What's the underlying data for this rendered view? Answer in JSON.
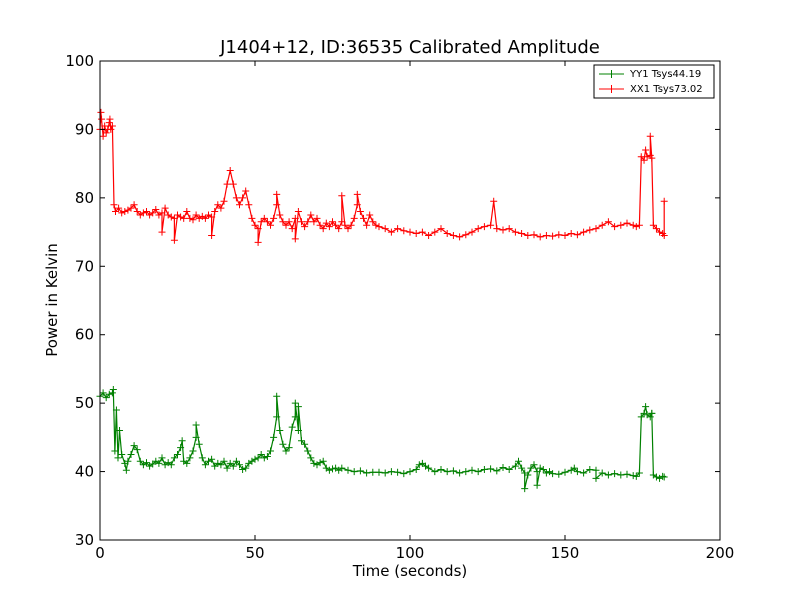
{
  "chart_data": {
    "type": "line",
    "title": "J1404+12, ID:36535 Calibrated Amplitude",
    "xlabel": "Time (seconds)",
    "ylabel": "Power in Kelvin",
    "xlim": [
      0,
      200
    ],
    "ylim": [
      30,
      100
    ],
    "xticks": [
      "0",
      "50",
      "100",
      "150",
      "200"
    ],
    "yticks": [
      "30",
      "40",
      "50",
      "60",
      "70",
      "80",
      "90",
      "100"
    ],
    "grid": false,
    "legend_position": "top-right",
    "marker": "+",
    "series": [
      {
        "name": "YY1 Tsys44.19",
        "color": "#008000",
        "points": [
          [
            0,
            51
          ],
          [
            1,
            51.5
          ],
          [
            2,
            50.8
          ],
          [
            3,
            51.3
          ],
          [
            4,
            51.5
          ],
          [
            4.8,
            43
          ],
          [
            5.3,
            49
          ],
          [
            5.8,
            42
          ],
          [
            6.3,
            46
          ],
          [
            7,
            42.5
          ],
          [
            8,
            41.2
          ],
          [
            9,
            41.5
          ],
          [
            10,
            42.5
          ],
          [
            11,
            43.8
          ],
          [
            12,
            43.2
          ],
          [
            13,
            41.5
          ],
          [
            14,
            41
          ],
          [
            15,
            41.3
          ],
          [
            16,
            40.8
          ],
          [
            17,
            41.1
          ],
          [
            18,
            41.5
          ],
          [
            19,
            41.2
          ],
          [
            20,
            42
          ],
          [
            21,
            41
          ],
          [
            22,
            41.3
          ],
          [
            23,
            41
          ],
          [
            24,
            42
          ],
          [
            25,
            42.5
          ],
          [
            26,
            43.5
          ],
          [
            27,
            41.5
          ],
          [
            28,
            41.2
          ],
          [
            29,
            42
          ],
          [
            30,
            43
          ],
          [
            31,
            45
          ],
          [
            32,
            44
          ],
          [
            33,
            42
          ],
          [
            34,
            41
          ],
          [
            35,
            41.5
          ],
          [
            36,
            41.8
          ],
          [
            37,
            40.8
          ],
          [
            38,
            41.2
          ],
          [
            39,
            41
          ],
          [
            40,
            41.5
          ],
          [
            41,
            40.5
          ],
          [
            42,
            41.2
          ],
          [
            43,
            40.8
          ],
          [
            44,
            41.5
          ],
          [
            45,
            41
          ],
          [
            46,
            40.3
          ],
          [
            47,
            40.5
          ],
          [
            48,
            41.2
          ],
          [
            49,
            41.5
          ],
          [
            50,
            41.8
          ],
          [
            51,
            42
          ],
          [
            52,
            42.5
          ],
          [
            53,
            42
          ],
          [
            54,
            42.2
          ],
          [
            55,
            43
          ],
          [
            56,
            45
          ],
          [
            57,
            48
          ],
          [
            58,
            46
          ],
          [
            59,
            44
          ],
          [
            60,
            43
          ],
          [
            61,
            43.5
          ],
          [
            62,
            46.5
          ],
          [
            63,
            48
          ],
          [
            64,
            46
          ],
          [
            65,
            44.5
          ],
          [
            66,
            44
          ],
          [
            67,
            43
          ],
          [
            68,
            42
          ],
          [
            69,
            41.2
          ],
          [
            70,
            41
          ],
          [
            71,
            41.3
          ],
          [
            72,
            41.5
          ],
          [
            73,
            40.5
          ],
          [
            74,
            40.2
          ],
          [
            75,
            40.4
          ],
          [
            76,
            40.5
          ],
          [
            77,
            40.2
          ],
          [
            78,
            40.5
          ],
          [
            80,
            40.2
          ],
          [
            82,
            40
          ],
          [
            84,
            40.1
          ],
          [
            86,
            39.8
          ],
          [
            88,
            39.9
          ],
          [
            90,
            39.9
          ],
          [
            92,
            39.8
          ],
          [
            94,
            40
          ],
          [
            96,
            39.9
          ],
          [
            98,
            39.7
          ],
          [
            100,
            40
          ],
          [
            102,
            40.3
          ],
          [
            103,
            41
          ],
          [
            104,
            41.2
          ],
          [
            105,
            40.8
          ],
          [
            106,
            40.5
          ],
          [
            108,
            40
          ],
          [
            110,
            40.3
          ],
          [
            112,
            40
          ],
          [
            114,
            40.1
          ],
          [
            116,
            39.8
          ],
          [
            118,
            40
          ],
          [
            120,
            40.2
          ],
          [
            122,
            40
          ],
          [
            124,
            40.3
          ],
          [
            126,
            40.4
          ],
          [
            128,
            40.1
          ],
          [
            130,
            40.6
          ],
          [
            132,
            40.3
          ],
          [
            134,
            40.8
          ],
          [
            135,
            41.5
          ],
          [
            136,
            40.5
          ],
          [
            137,
            39.8
          ],
          [
            138,
            39.5
          ],
          [
            139,
            40.5
          ],
          [
            140,
            41
          ],
          [
            141,
            40
          ],
          [
            142,
            40.5
          ],
          [
            143,
            40.3
          ],
          [
            144,
            39.8
          ],
          [
            145,
            40
          ],
          [
            146,
            39.7
          ],
          [
            148,
            39.6
          ],
          [
            150,
            39.9
          ],
          [
            152,
            40.2
          ],
          [
            153,
            40.5
          ],
          [
            154,
            40
          ],
          [
            156,
            39.8
          ],
          [
            158,
            40.3
          ],
          [
            160,
            40.2
          ],
          [
            162,
            39.8
          ],
          [
            164,
            39.5
          ],
          [
            166,
            39.7
          ],
          [
            168,
            39.5
          ],
          [
            170,
            39.6
          ],
          [
            172,
            39.4
          ],
          [
            173,
            39.3
          ],
          [
            174,
            39.8
          ],
          [
            174.6,
            48
          ],
          [
            175.5,
            48.5
          ],
          [
            176.5,
            48.3
          ],
          [
            177.5,
            48
          ],
          [
            178,
            48.5
          ],
          [
            178.5,
            39.5
          ],
          [
            179.5,
            39.2
          ],
          [
            180.5,
            39
          ],
          [
            181.5,
            39.3
          ],
          [
            182,
            39.2
          ]
        ],
        "outliers": [
          [
            137,
            37.5
          ],
          [
            160,
            39
          ],
          [
            4.3,
            52
          ],
          [
            57,
            51
          ],
          [
            63,
            50
          ],
          [
            31,
            46.8
          ],
          [
            26.5,
            44.5
          ],
          [
            8.5,
            40.2
          ],
          [
            64,
            49.5
          ],
          [
            141,
            38
          ],
          [
            176,
            49.5
          ],
          [
            178,
            48.5
          ]
        ]
      },
      {
        "name": "XX1 Tsys73.02",
        "color": "#ff0000",
        "points": [
          [
            0,
            90
          ],
          [
            0.5,
            91.5
          ],
          [
            1,
            89
          ],
          [
            1.5,
            90.5
          ],
          [
            2,
            89.5
          ],
          [
            2.5,
            90
          ],
          [
            3,
            91
          ],
          [
            3.5,
            90
          ],
          [
            4,
            90.5
          ],
          [
            4.5,
            79
          ],
          [
            5,
            78
          ],
          [
            6,
            78.5
          ],
          [
            7,
            77.8
          ],
          [
            8,
            78
          ],
          [
            9,
            78.2
          ],
          [
            10,
            78.5
          ],
          [
            11,
            79
          ],
          [
            12,
            78
          ],
          [
            13,
            77.5
          ],
          [
            14,
            77.8
          ],
          [
            15,
            78
          ],
          [
            16,
            77.5
          ],
          [
            17,
            77.8
          ],
          [
            18,
            78.3
          ],
          [
            19,
            77.5
          ],
          [
            20,
            77.8
          ],
          [
            21,
            78.5
          ],
          [
            22,
            77.5
          ],
          [
            23,
            77.2
          ],
          [
            24,
            77
          ],
          [
            25,
            77.5
          ],
          [
            26,
            77.2
          ],
          [
            27,
            77
          ],
          [
            28,
            78
          ],
          [
            29,
            77
          ],
          [
            30,
            76.8
          ],
          [
            31,
            77.5
          ],
          [
            32,
            77
          ],
          [
            33,
            77.3
          ],
          [
            34,
            77
          ],
          [
            35,
            77.5
          ],
          [
            36,
            77.2
          ],
          [
            37,
            78
          ],
          [
            38,
            79
          ],
          [
            39,
            78.5
          ],
          [
            40,
            79.5
          ],
          [
            41,
            82
          ],
          [
            42,
            84
          ],
          [
            43,
            82
          ],
          [
            44,
            80
          ],
          [
            45,
            79
          ],
          [
            46,
            80
          ],
          [
            47,
            81
          ],
          [
            48,
            79
          ],
          [
            49,
            77
          ],
          [
            50,
            76
          ],
          [
            51,
            75.5
          ],
          [
            52,
            76.5
          ],
          [
            53,
            77
          ],
          [
            54,
            76.5
          ],
          [
            55,
            76
          ],
          [
            56,
            77
          ],
          [
            57,
            79
          ],
          [
            58,
            77.5
          ],
          [
            59,
            76.5
          ],
          [
            60,
            76
          ],
          [
            61,
            76.5
          ],
          [
            62,
            75.5
          ],
          [
            63,
            77
          ],
          [
            64,
            78
          ],
          [
            65,
            76.5
          ],
          [
            66,
            75.8
          ],
          [
            67,
            76.5
          ],
          [
            68,
            77.5
          ],
          [
            69,
            76.5
          ],
          [
            70,
            77
          ],
          [
            71,
            76
          ],
          [
            72,
            75.5
          ],
          [
            73,
            76.3
          ],
          [
            74,
            75.8
          ],
          [
            75,
            76.5
          ],
          [
            76,
            76
          ],
          [
            77,
            75.5
          ],
          [
            78,
            76.5
          ],
          [
            79,
            76
          ],
          [
            80,
            75.5
          ],
          [
            81,
            76
          ],
          [
            82,
            77
          ],
          [
            83,
            79
          ],
          [
            84,
            78
          ],
          [
            85,
            77
          ],
          [
            86,
            76
          ],
          [
            87,
            77.5
          ],
          [
            88,
            76.5
          ],
          [
            89,
            76
          ],
          [
            90,
            75.8
          ],
          [
            92,
            75.5
          ],
          [
            94,
            75
          ],
          [
            96,
            75.5
          ],
          [
            98,
            75.2
          ],
          [
            100,
            75
          ],
          [
            102,
            74.8
          ],
          [
            104,
            75
          ],
          [
            106,
            74.5
          ],
          [
            108,
            75
          ],
          [
            110,
            75.5
          ],
          [
            112,
            74.8
          ],
          [
            114,
            74.5
          ],
          [
            116,
            74.3
          ],
          [
            118,
            74.6
          ],
          [
            120,
            75
          ],
          [
            122,
            75.5
          ],
          [
            124,
            75.8
          ],
          [
            126,
            76
          ],
          [
            128,
            75.5
          ],
          [
            130,
            75.3
          ],
          [
            132,
            75.5
          ],
          [
            134,
            75
          ],
          [
            136,
            74.8
          ],
          [
            138,
            74.5
          ],
          [
            140,
            74.6
          ],
          [
            142,
            74.3
          ],
          [
            144,
            74.5
          ],
          [
            146,
            74.4
          ],
          [
            148,
            74.6
          ],
          [
            150,
            74.5
          ],
          [
            152,
            74.8
          ],
          [
            154,
            74.6
          ],
          [
            156,
            75
          ],
          [
            158,
            75.3
          ],
          [
            160,
            75.5
          ],
          [
            162,
            76
          ],
          [
            164,
            76.5
          ],
          [
            166,
            75.8
          ],
          [
            168,
            76
          ],
          [
            170,
            76.3
          ],
          [
            172,
            76
          ],
          [
            173,
            75.8
          ],
          [
            174,
            76
          ],
          [
            174.6,
            86
          ],
          [
            175.5,
            85.5
          ],
          [
            176.5,
            86
          ],
          [
            177.5,
            86.2
          ],
          [
            178,
            85.8
          ],
          [
            178.5,
            76
          ],
          [
            179.5,
            75.5
          ],
          [
            180.5,
            75
          ],
          [
            181.5,
            74.8
          ],
          [
            182,
            74.5
          ]
        ],
        "outliers": [
          [
            0.3,
            92.5
          ],
          [
            3.2,
            91.5
          ],
          [
            24,
            73.8
          ],
          [
            36,
            74.5
          ],
          [
            51,
            73.5
          ],
          [
            57,
            80.5
          ],
          [
            63,
            74
          ],
          [
            78,
            80.3
          ],
          [
            83,
            80.5
          ],
          [
            127,
            79.5
          ],
          [
            177.5,
            89
          ],
          [
            182,
            79.5
          ],
          [
            176,
            87
          ],
          [
            20,
            75
          ]
        ]
      }
    ]
  }
}
